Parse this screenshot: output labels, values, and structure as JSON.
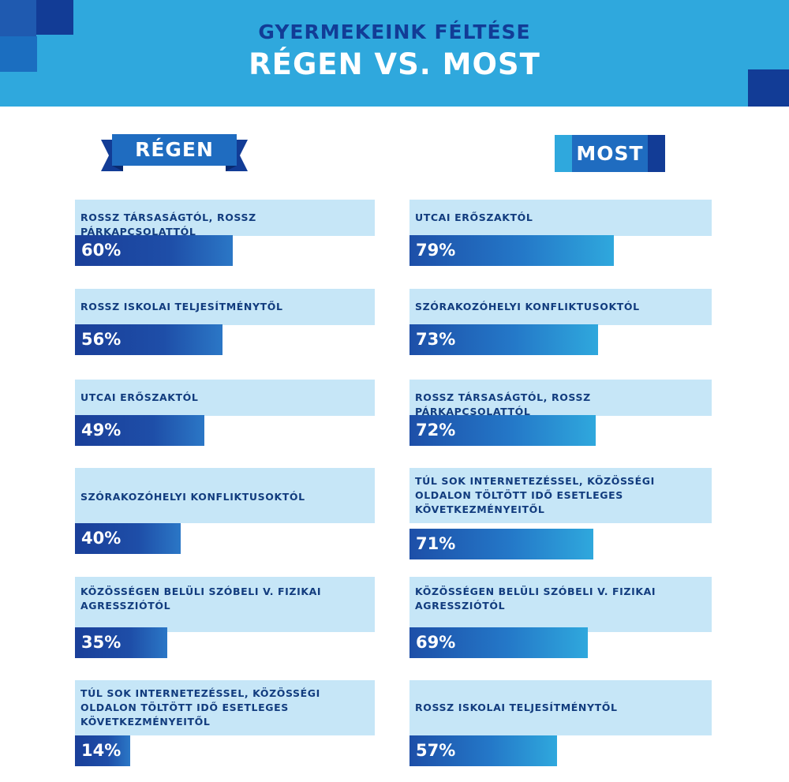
{
  "header": {
    "line1": "GYERMEKEINK FÉLTÉSE",
    "line2": "RÉGEN VS. MOST"
  },
  "colors": {
    "header_bg": "#2fa8dd",
    "dark_blue": "#123c96",
    "navy": "#0e2f86",
    "light_panel": "#c6e6f7",
    "bar_left_dark": "#1a3f99",
    "bar_right_dark": "#1d4fa8",
    "bar_right_light": "#2fa8dd"
  },
  "chart_data": {
    "type": "bar",
    "title": "GYERMEKEINK FÉLTÉSE RÉGEN VS. MOST",
    "xlim": [
      0,
      100
    ],
    "unit": "%",
    "panels": [
      {
        "name": "RÉGEN",
        "items": [
          {
            "label": "ROSSZ TÁRSASÁGTÓL, ROSSZ PÁRKAPCSOLATTÓL",
            "value": 60,
            "value_label": "60%"
          },
          {
            "label": "ROSSZ ISKOLAI TELJESÍTMÉNYTŐL",
            "value": 56,
            "value_label": "56%"
          },
          {
            "label": "UTCAI ERŐSZAKTÓL",
            "value": 49,
            "value_label": "49%"
          },
          {
            "label": "SZÓRAKOZÓHELYI KONFLIKTUSOKTÓL",
            "value": 40,
            "value_label": "40%"
          },
          {
            "label": "KÖZÖSSÉGEN BELÜLI SZÓBELI V. FIZIKAI AGRESSZIÓTÓL",
            "value": 35,
            "value_label": "35%"
          },
          {
            "label": "TÚL SOK INTERNETEZÉSSEL, KÖZÖSSÉGI OLDALON TÖLTÖTT IDŐ ESETLEGES KÖVETKEZMÉNYEITŐL",
            "value": 14,
            "value_label": "14%"
          }
        ]
      },
      {
        "name": "MOST",
        "items": [
          {
            "label": "UTCAI ERŐSZAKTÓL",
            "value": 79,
            "value_label": "79%"
          },
          {
            "label": "SZÓRAKOZÓHELYI KONFLIKTUSOKTÓL",
            "value": 73,
            "value_label": "73%"
          },
          {
            "label": "ROSSZ TÁRSASÁGTÓL, ROSSZ PÁRKAPCSOLATTÓL",
            "value": 72,
            "value_label": "72%"
          },
          {
            "label": "TÚL SOK INTERNETEZÉSSEL, KÖZÖSSÉGI OLDALON TÖLTÖTT IDŐ ESETLEGES KÖVETKEZMÉNYEITŐL",
            "value": 71,
            "value_label": "71%"
          },
          {
            "label": "KÖZÖSSÉGEN BELÜLI SZÓBELI V. FIZIKAI AGRESSZIÓTÓL",
            "value": 69,
            "value_label": "69%"
          },
          {
            "label": "ROSSZ ISKOLAI TELJESÍTMÉNYTŐL",
            "value": 57,
            "value_label": "57%"
          }
        ]
      }
    ]
  }
}
